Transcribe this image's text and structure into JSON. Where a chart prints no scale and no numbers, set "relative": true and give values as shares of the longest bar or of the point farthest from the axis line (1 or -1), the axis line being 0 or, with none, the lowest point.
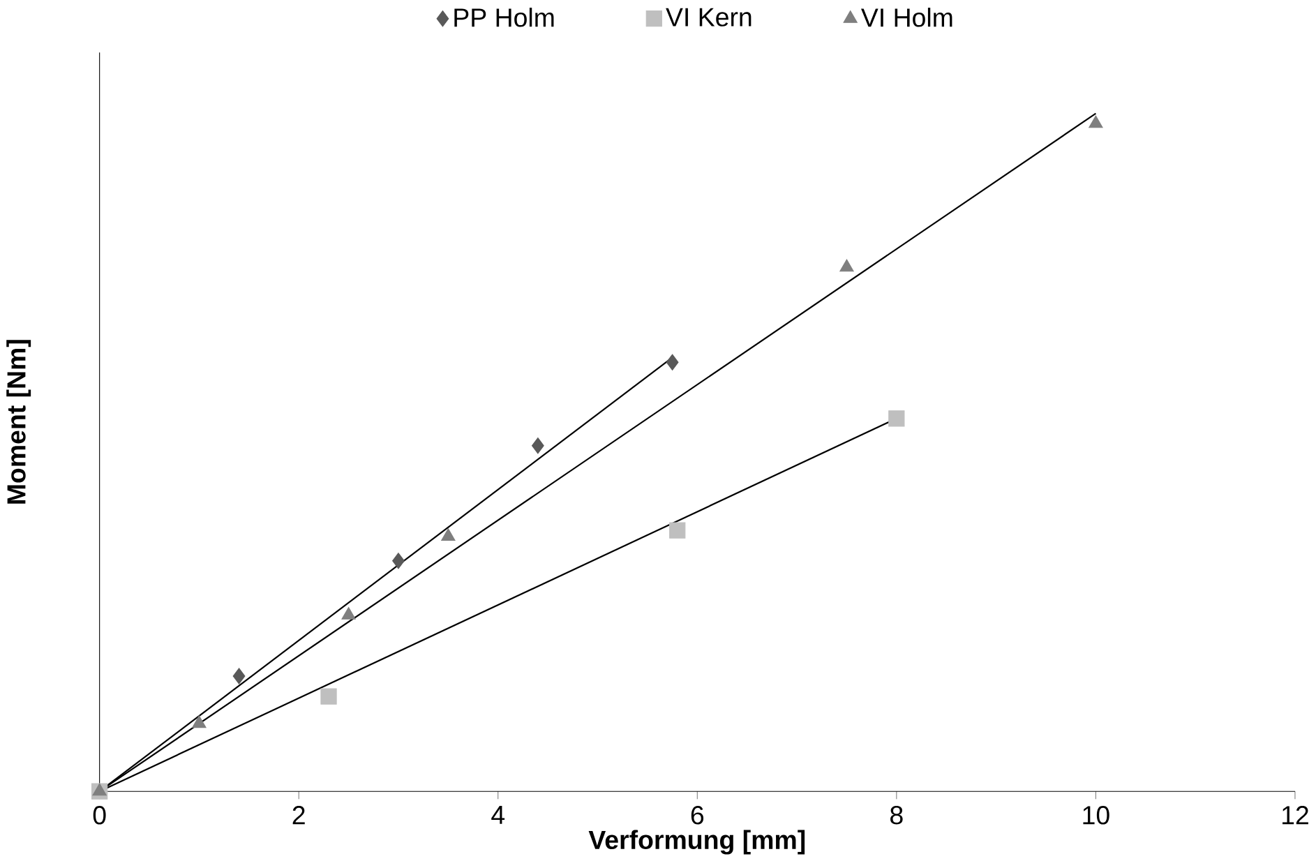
{
  "chart_data": {
    "type": "scatter",
    "relative": true,
    "xlabel": "Verformung [mm]",
    "ylabel": "Moment [Nm]",
    "xlim": [
      0,
      12
    ],
    "xticks": [
      0,
      2,
      4,
      6,
      8,
      10,
      12
    ],
    "tick_labels": "x",
    "legend": "top",
    "series": [
      {
        "name": "PP Holm",
        "color": "#595959",
        "marker": "diamond",
        "x": [
          1.4,
          3.0,
          4.4,
          5.75
        ],
        "values": [
          0.17,
          0.34,
          0.51,
          0.633
        ]
      },
      {
        "name": "VI Kern",
        "color": "#bfbfbf",
        "marker": "square",
        "x": [
          0,
          2.3,
          5.8,
          8
        ],
        "values": [
          0,
          0.14,
          0.385,
          0.55
        ]
      },
      {
        "name": "VI Holm",
        "color": "#7f7f7f",
        "marker": "triangle",
        "x": [
          0,
          1,
          2.5,
          3.5,
          7.5,
          10
        ],
        "values": [
          0,
          0.1,
          0.26,
          0.376,
          0.773,
          0.985
        ]
      },
      {
        "type": "line",
        "color": "#000000",
        "marker": "none",
        "line_style": "solid",
        "x": [
          0,
          5.75
        ],
        "values": [
          0,
          0.64
        ]
      },
      {
        "type": "line",
        "color": "#000000",
        "marker": "none",
        "line_style": "solid",
        "x": [
          0,
          8
        ],
        "values": [
          0,
          0.55
        ]
      },
      {
        "type": "line",
        "color": "#000000",
        "marker": "none",
        "line_style": "solid",
        "x": [
          0,
          10
        ],
        "values": [
          0,
          1.0
        ]
      }
    ]
  }
}
